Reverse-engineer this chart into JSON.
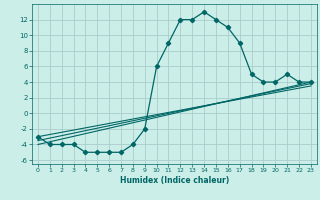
{
  "title": "",
  "xlabel": "Humidex (Indice chaleur)",
  "ylabel": "",
  "bg_color": "#cceee8",
  "grid_color": "#aacccc",
  "line_color": "#006666",
  "xlim": [
    -0.5,
    23.5
  ],
  "ylim": [
    -6.5,
    14
  ],
  "xticks": [
    0,
    1,
    2,
    3,
    4,
    5,
    6,
    7,
    8,
    9,
    10,
    11,
    12,
    13,
    14,
    15,
    16,
    17,
    18,
    19,
    20,
    21,
    22,
    23
  ],
  "yticks": [
    -6,
    -4,
    -2,
    0,
    2,
    4,
    6,
    8,
    10,
    12
  ],
  "curve1_x": [
    0,
    1,
    2,
    3,
    4,
    5,
    6,
    7,
    8,
    9,
    10,
    11,
    12,
    13,
    14,
    15,
    16,
    17,
    18,
    19,
    20,
    21,
    22,
    23
  ],
  "curve1_y": [
    -3,
    -4,
    -4,
    -4,
    -5,
    -5,
    -5,
    -5,
    -4,
    -2,
    6,
    9,
    12,
    12,
    13,
    12,
    11,
    9,
    5,
    4,
    4,
    5,
    4,
    4
  ],
  "line2_x": [
    0,
    23
  ],
  "line2_y": [
    -4.0,
    4.0
  ],
  "line3_x": [
    0,
    23
  ],
  "line3_y": [
    -3.5,
    3.8
  ],
  "line4_x": [
    0,
    23
  ],
  "line4_y": [
    -3.0,
    3.5
  ]
}
